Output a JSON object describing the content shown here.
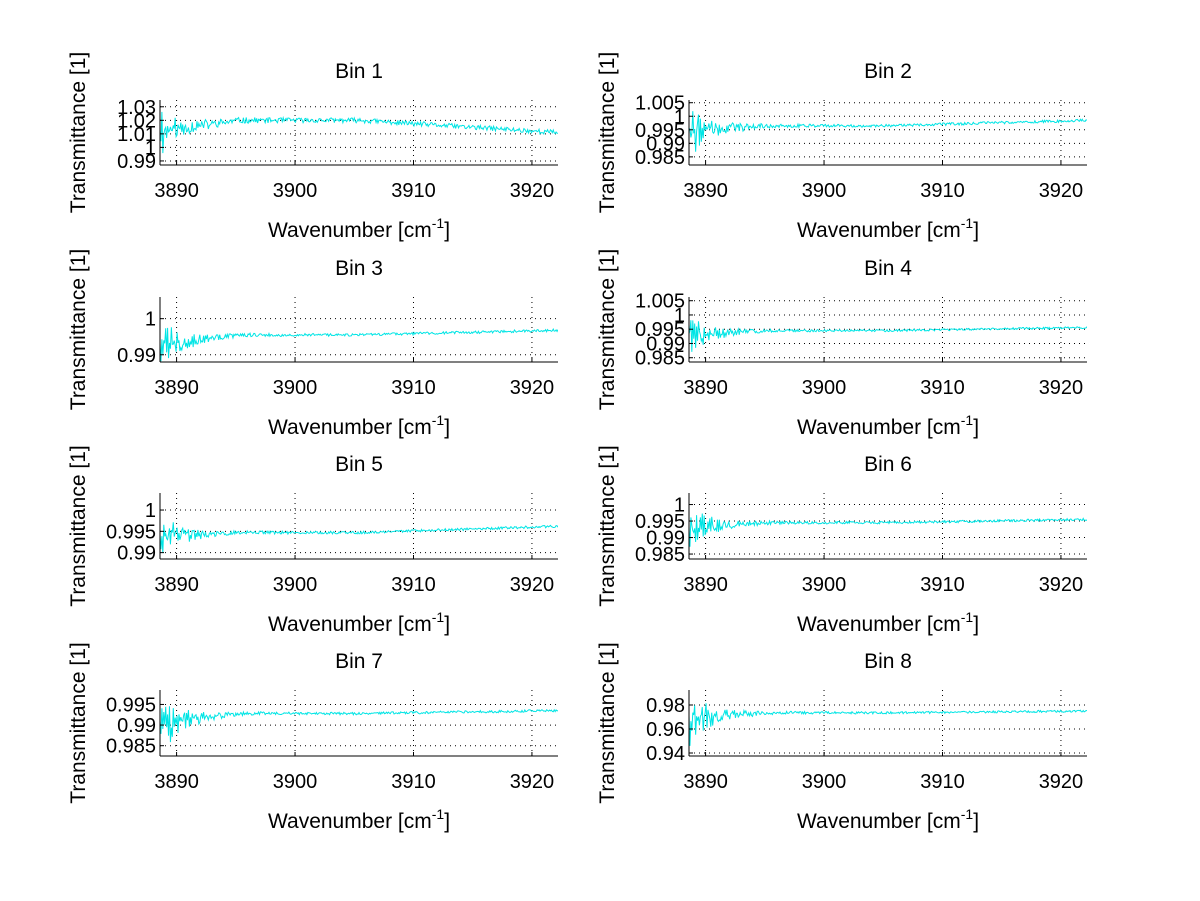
{
  "figure": {
    "background": "#ffffff",
    "line_color": "#00e5e5"
  },
  "chart_data": [
    {
      "type": "line",
      "title": "Bin 1",
      "xlabel": "Wavenumber [cm",
      "xlabel_sup": "-1",
      "xlabel_end": "]",
      "ylabel": "Transmittance [1]",
      "xlim": [
        3888.6,
        3922.2
      ],
      "ylim": [
        0.987,
        1.035
      ],
      "xticks": [
        3890,
        3900,
        3910,
        3920
      ],
      "xtick_labels": [
        "3890",
        "3900",
        "3910",
        "3920"
      ],
      "yticks": [
        0.99,
        1,
        1.01,
        1.02,
        1.03
      ],
      "ytick_labels": [
        "0.99",
        "1",
        "1.01",
        "1.02",
        "1.03"
      ],
      "grid": true,
      "series": [
        {
          "name": "Bin 1",
          "baseline_start": 1.012,
          "baseline_mid": 1.02,
          "baseline_end": 1.011,
          "noise_start": 0.018,
          "noise_end": 0.003,
          "seed": 11
        }
      ]
    },
    {
      "type": "line",
      "title": "Bin 2",
      "xlabel": "Wavenumber [cm",
      "xlabel_sup": "-1",
      "xlabel_end": "]",
      "ylabel": "Transmittance [1]",
      "xlim": [
        3888.6,
        3922.2
      ],
      "ylim": [
        0.982,
        1.006
      ],
      "xticks": [
        3890,
        3900,
        3910,
        3920
      ],
      "xtick_labels": [
        "3890",
        "3900",
        "3910",
        "3920"
      ],
      "yticks": [
        0.985,
        0.99,
        0.995,
        1,
        1.005
      ],
      "ytick_labels": [
        "0.985",
        "0.99",
        "0.995",
        "1",
        "1.005"
      ],
      "grid": true,
      "series": [
        {
          "name": "Bin 2",
          "baseline_start": 0.995,
          "baseline_mid": 0.9965,
          "baseline_end": 0.9985,
          "noise_start": 0.01,
          "noise_end": 0.0008,
          "seed": 22
        }
      ]
    },
    {
      "type": "line",
      "title": "Bin 3",
      "xlabel": "Wavenumber [cm",
      "xlabel_sup": "-1",
      "xlabel_end": "]",
      "ylabel": "Transmittance [1]",
      "xlim": [
        3888.6,
        3922.2
      ],
      "ylim": [
        0.988,
        1.006
      ],
      "xticks": [
        3890,
        3900,
        3910,
        3920
      ],
      "xtick_labels": [
        "3890",
        "3900",
        "3910",
        "3920"
      ],
      "yticks": [
        0.99,
        1
      ],
      "ytick_labels": [
        "0.99",
        "1"
      ],
      "grid": true,
      "series": [
        {
          "name": "Bin 3",
          "baseline_start": 0.993,
          "baseline_mid": 0.9955,
          "baseline_end": 0.9968,
          "noise_start": 0.007,
          "noise_end": 0.0006,
          "seed": 33
        }
      ]
    },
    {
      "type": "line",
      "title": "Bin 4",
      "xlabel": "Wavenumber [cm",
      "xlabel_sup": "-1",
      "xlabel_end": "]",
      "ylabel": "Transmittance [1]",
      "xlim": [
        3888.6,
        3922.2
      ],
      "ylim": [
        0.9835,
        1.0063
      ],
      "xticks": [
        3890,
        3900,
        3910,
        3920
      ],
      "xtick_labels": [
        "3890",
        "3900",
        "3910",
        "3920"
      ],
      "yticks": [
        0.985,
        0.99,
        0.995,
        1,
        1.005
      ],
      "ytick_labels": [
        "0.985",
        "0.99",
        "0.995",
        "1",
        "1.005"
      ],
      "grid": true,
      "series": [
        {
          "name": "Bin 4",
          "baseline_start": 0.993,
          "baseline_mid": 0.9945,
          "baseline_end": 0.9956,
          "noise_start": 0.008,
          "noise_end": 0.0006,
          "seed": 44
        }
      ]
    },
    {
      "type": "line",
      "title": "Bin 5",
      "xlabel": "Wavenumber [cm",
      "xlabel_sup": "-1",
      "xlabel_end": "]",
      "ylabel": "Transmittance [1]",
      "xlim": [
        3888.6,
        3922.2
      ],
      "ylim": [
        0.9885,
        1.004
      ],
      "xticks": [
        3890,
        3900,
        3910,
        3920
      ],
      "xtick_labels": [
        "3890",
        "3900",
        "3910",
        "3920"
      ],
      "yticks": [
        0.99,
        0.995,
        1
      ],
      "ytick_labels": [
        "0.99",
        "0.995",
        "1"
      ],
      "grid": true,
      "series": [
        {
          "name": "Bin 5",
          "baseline_start": 0.994,
          "baseline_mid": 0.9947,
          "baseline_end": 0.9962,
          "noise_start": 0.006,
          "noise_end": 0.0005,
          "seed": 55
        }
      ]
    },
    {
      "type": "line",
      "title": "Bin 6",
      "xlabel": "Wavenumber [cm",
      "xlabel_sup": "-1",
      "xlabel_end": "]",
      "ylabel": "Transmittance [1]",
      "xlim": [
        3888.6,
        3922.2
      ],
      "ylim": [
        0.9835,
        1.0035
      ],
      "xticks": [
        3890,
        3900,
        3910,
        3920
      ],
      "xtick_labels": [
        "3890",
        "3900",
        "3910",
        "3920"
      ],
      "yticks": [
        0.985,
        0.99,
        0.995,
        1
      ],
      "ytick_labels": [
        "0.985",
        "0.99",
        "0.995",
        "1"
      ],
      "grid": true,
      "series": [
        {
          "name": "Bin 6",
          "baseline_start": 0.993,
          "baseline_mid": 0.9945,
          "baseline_end": 0.9955,
          "noise_start": 0.007,
          "noise_end": 0.0006,
          "seed": 66
        }
      ]
    },
    {
      "type": "line",
      "title": "Bin 7",
      "xlabel": "Wavenumber [cm",
      "xlabel_sup": "-1",
      "xlabel_end": "]",
      "ylabel": "Transmittance [1]",
      "xlim": [
        3888.6,
        3922.2
      ],
      "ylim": [
        0.9825,
        0.9985
      ],
      "xticks": [
        3890,
        3900,
        3910,
        3920
      ],
      "xtick_labels": [
        "3890",
        "3900",
        "3910",
        "3920"
      ],
      "yticks": [
        0.985,
        0.99,
        0.995
      ],
      "ytick_labels": [
        "0.985",
        "0.99",
        "0.995"
      ],
      "grid": true,
      "series": [
        {
          "name": "Bin 7",
          "baseline_start": 0.9905,
          "baseline_mid": 0.9928,
          "baseline_end": 0.9935,
          "noise_start": 0.007,
          "noise_end": 0.0005,
          "seed": 77
        }
      ]
    },
    {
      "type": "line",
      "title": "Bin 8",
      "xlabel": "Wavenumber [cm",
      "xlabel_sup": "-1",
      "xlabel_end": "]",
      "ylabel": "Transmittance [1]",
      "xlim": [
        3888.6,
        3922.2
      ],
      "ylim": [
        0.9375,
        0.9925
      ],
      "xticks": [
        3890,
        3900,
        3910,
        3920
      ],
      "xtick_labels": [
        "3890",
        "3900",
        "3910",
        "3920"
      ],
      "yticks": [
        0.94,
        0.96,
        0.98
      ],
      "ytick_labels": [
        "0.94",
        "0.96",
        "0.98"
      ],
      "grid": true,
      "series": [
        {
          "name": "Bin 8",
          "baseline_start": 0.97,
          "baseline_mid": 0.9735,
          "baseline_end": 0.975,
          "noise_start": 0.022,
          "noise_end": 0.0015,
          "seed": 88
        }
      ]
    }
  ]
}
